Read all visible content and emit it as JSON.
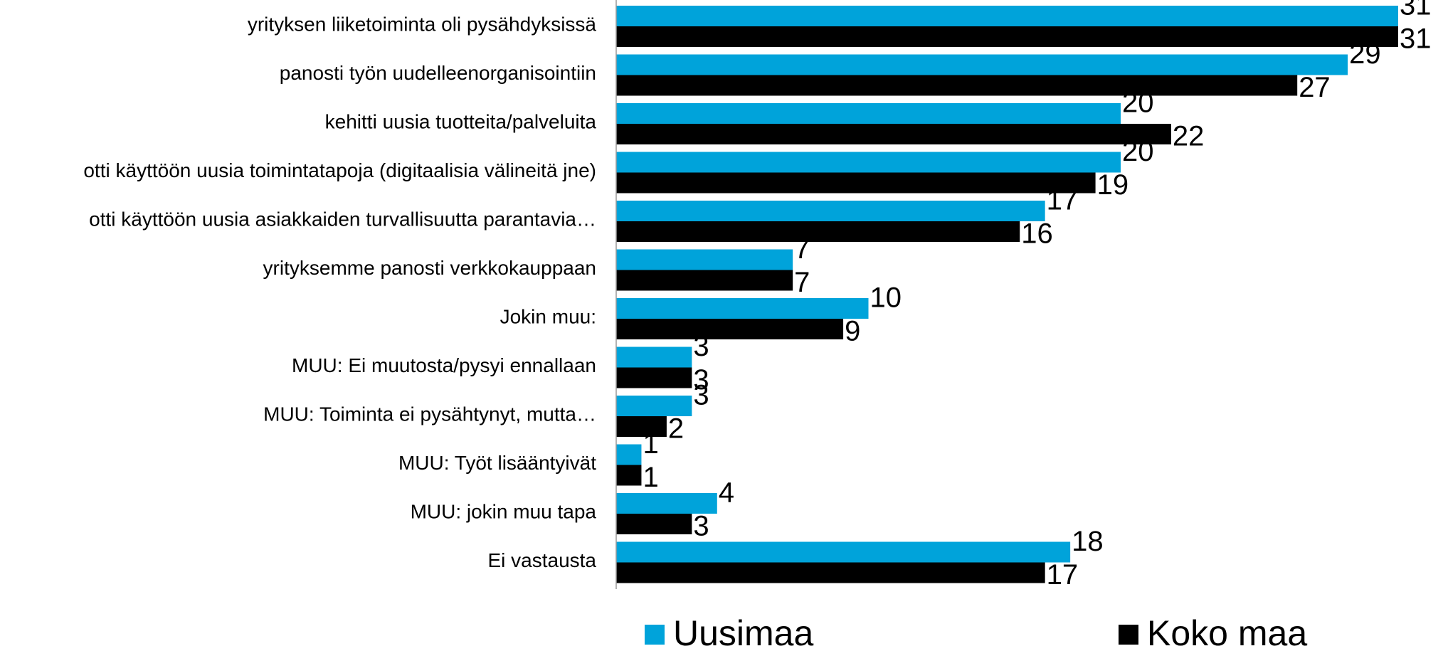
{
  "chart_data": {
    "type": "bar",
    "orientation": "horizontal",
    "categories": [
      "yrityksen liiketoiminta oli pysähdyksissä",
      "panosti työn uudelleenorganisointiin",
      "kehitti uusia tuotteita/palveluita",
      "otti käyttöön uusia toimintatapoja (digitaalisia välineitä jne)",
      "otti käyttöön uusia asiakkaiden turvallisuutta parantavia…",
      "yrityksemme panosti verkkokauppaan",
      "Jokin muu:",
      "MUU: Ei muutosta/pysyi ennallaan",
      "MUU: Toiminta ei pysähtynyt, mutta…",
      "MUU: Työt lisääntyivät",
      "MUU: jokin muu tapa",
      "Ei vastausta"
    ],
    "series": [
      {
        "name": "Uusimaa",
        "color": "#00a3da",
        "values": [
          31,
          29,
          20,
          20,
          17,
          7,
          10,
          3,
          3,
          1,
          4,
          18
        ]
      },
      {
        "name": "Koko maa",
        "color": "#000000",
        "values": [
          31,
          27,
          22,
          19,
          16,
          7,
          9,
          3,
          2,
          1,
          3,
          17
        ]
      }
    ],
    "legend": "bottom"
  }
}
